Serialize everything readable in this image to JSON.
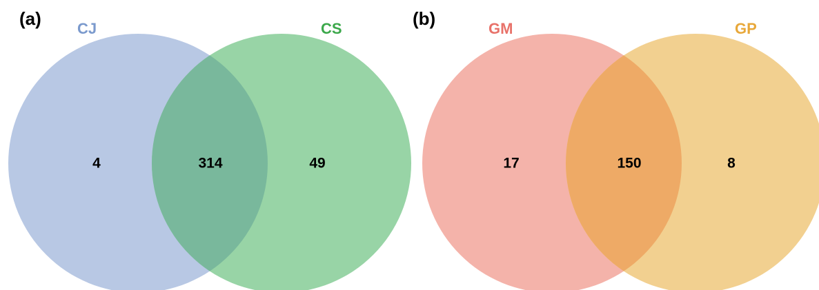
{
  "panels": [
    {
      "letter": "(a)",
      "sets": [
        {
          "label": "CJ",
          "color": "#7b9acd"
        },
        {
          "label": "CS",
          "color": "#3ca84b"
        }
      ],
      "fills": {
        "left": "#b8c8e4",
        "right": "#98d4a6",
        "overlap": "#79b89c"
      },
      "counts": {
        "left_only": "4",
        "both": "314",
        "right_only": "49"
      }
    },
    {
      "letter": "(b)",
      "sets": [
        {
          "label": "GM",
          "color": "#e8726a"
        },
        {
          "label": "GP",
          "color": "#e8a83a"
        }
      ],
      "fills": {
        "left": "#f4b3aa",
        "right": "#f2d090",
        "overlap": "#eeaa66"
      },
      "counts": {
        "left_only": "17",
        "both": "150",
        "right_only": "8"
      }
    }
  ]
}
